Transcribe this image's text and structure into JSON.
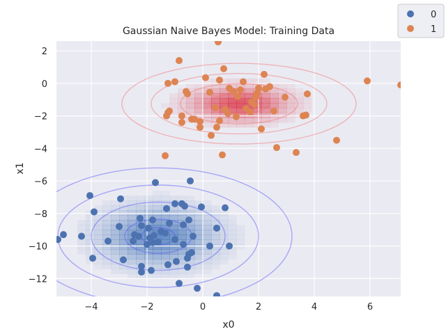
{
  "chart_data": {
    "type": "scatter",
    "title": "Gaussian Naive Bayes Model: Training Data",
    "xlabel": "x0",
    "ylabel": "x1",
    "xlim": [
      -5.25,
      7.1
    ],
    "ylim": [
      -13.1,
      2.6
    ],
    "xticks": [
      -4,
      -2,
      0,
      2,
      4,
      6
    ],
    "yticks": [
      -12,
      -10,
      -8,
      -6,
      -4,
      -2,
      0,
      2
    ],
    "grid": true,
    "legend": {
      "placement": "top-right",
      "entries": [
        "0",
        "1"
      ]
    },
    "colors": {
      "class0": "#4c72b0",
      "class1": "#dd8452",
      "contour0": "#4a4aff",
      "contour1": "#f06a6a",
      "background": "#eaeaf2",
      "heat0": "#3d6fb5",
      "heat1": "#d9283a"
    },
    "gaussians": [
      {
        "class": "0",
        "mean": [
          -1.6,
          -9.4
        ],
        "std": [
          1.2,
          1.05
        ]
      },
      {
        "class": "1",
        "mean": [
          1.3,
          -1.25
        ],
        "std": [
          1.05,
          0.62
        ]
      }
    ],
    "series": [
      {
        "name": "0",
        "points": [
          [
            -5.2,
            -9.6
          ],
          [
            -5.0,
            -9.3
          ],
          [
            -4.35,
            -9.4
          ],
          [
            -4.05,
            -6.9
          ],
          [
            -3.9,
            -7.9
          ],
          [
            -3.95,
            -10.75
          ],
          [
            -3.4,
            -9.7
          ],
          [
            -2.95,
            -7.1
          ],
          [
            -3.0,
            -8.8
          ],
          [
            -2.85,
            -10.85
          ],
          [
            -2.5,
            -9.7
          ],
          [
            -2.45,
            -9.3
          ],
          [
            -2.3,
            -9.4
          ],
          [
            -2.25,
            -8.3
          ],
          [
            -2.2,
            -8.75
          ],
          [
            -2.2,
            -11.6
          ],
          [
            -2.2,
            -11.25
          ],
          [
            -2.0,
            -9.9
          ],
          [
            -1.95,
            -8.9
          ],
          [
            -1.9,
            -9.5
          ],
          [
            -1.85,
            -11.5
          ],
          [
            -1.8,
            -9.8
          ],
          [
            -1.75,
            -9.35
          ],
          [
            -1.8,
            -8.4
          ],
          [
            -1.7,
            -6.1
          ],
          [
            -1.6,
            -9.75
          ],
          [
            -1.5,
            -9.1
          ],
          [
            -1.35,
            -9.2
          ],
          [
            -1.3,
            -7.7
          ],
          [
            -1.25,
            -11.15
          ],
          [
            -1.2,
            -8.6
          ],
          [
            -1.0,
            -7.4
          ],
          [
            -1.0,
            -9.6
          ],
          [
            -0.95,
            -10.95
          ],
          [
            -0.85,
            -12.3
          ],
          [
            -0.75,
            -7.4
          ],
          [
            -0.7,
            -8.7
          ],
          [
            -0.7,
            -9.9
          ],
          [
            -0.65,
            -7.55
          ],
          [
            -0.55,
            -10.75
          ],
          [
            -0.55,
            -11.3
          ],
          [
            -0.5,
            -8.4
          ],
          [
            -0.5,
            -10.5
          ],
          [
            -0.45,
            -6.0
          ],
          [
            -0.4,
            -10.4
          ],
          [
            -0.35,
            -9.4
          ],
          [
            -0.2,
            -12.6
          ],
          [
            -0.05,
            -7.6
          ],
          [
            0.25,
            -10.0
          ],
          [
            0.5,
            -8.9
          ],
          [
            0.5,
            -13.05
          ],
          [
            0.8,
            -7.65
          ],
          [
            0.95,
            -10.0
          ]
        ]
      },
      {
        "name": "1",
        "points": [
          [
            -1.35,
            -4.45
          ],
          [
            -1.3,
            -2.0
          ],
          [
            -1.25,
            -1.8
          ],
          [
            -1.2,
            -1.7
          ],
          [
            -1.25,
            0.0
          ],
          [
            -1.0,
            0.1
          ],
          [
            -0.85,
            1.4
          ],
          [
            -0.75,
            -2.0
          ],
          [
            -0.75,
            -2.4
          ],
          [
            -0.6,
            -0.5
          ],
          [
            -0.55,
            -0.65
          ],
          [
            -0.4,
            -2.2
          ],
          [
            -0.3,
            -2.2
          ],
          [
            -0.1,
            -2.35
          ],
          [
            -0.1,
            -2.7
          ],
          [
            0.1,
            0.35
          ],
          [
            0.25,
            -0.55
          ],
          [
            0.3,
            -3.2
          ],
          [
            0.45,
            -1.5
          ],
          [
            0.5,
            -2.7
          ],
          [
            0.55,
            2.55
          ],
          [
            0.6,
            0.2
          ],
          [
            0.6,
            -2.3
          ],
          [
            0.7,
            -4.4
          ],
          [
            0.75,
            0.9
          ],
          [
            0.8,
            -1.6
          ],
          [
            0.9,
            -1.85
          ],
          [
            0.95,
            -0.3
          ],
          [
            1.1,
            -0.5
          ],
          [
            1.2,
            -2.05
          ],
          [
            1.25,
            -0.8
          ],
          [
            1.35,
            -0.4
          ],
          [
            1.45,
            0.1
          ],
          [
            1.55,
            -1.55
          ],
          [
            1.7,
            -1.75
          ],
          [
            1.75,
            -1.15
          ],
          [
            1.85,
            -1.3
          ],
          [
            1.9,
            -0.85
          ],
          [
            1.95,
            -0.6
          ],
          [
            2.0,
            -0.3
          ],
          [
            2.1,
            -2.8
          ],
          [
            2.2,
            0.55
          ],
          [
            2.25,
            -0.35
          ],
          [
            2.4,
            -0.2
          ],
          [
            2.55,
            -1.7
          ],
          [
            2.65,
            -3.95
          ],
          [
            2.95,
            -0.85
          ],
          [
            3.35,
            -4.25
          ],
          [
            3.6,
            -2.0
          ],
          [
            3.7,
            -1.95
          ],
          [
            3.75,
            -0.65
          ],
          [
            4.8,
            -3.5
          ],
          [
            5.9,
            0.15
          ],
          [
            7.1,
            -0.1
          ]
        ]
      }
    ]
  }
}
